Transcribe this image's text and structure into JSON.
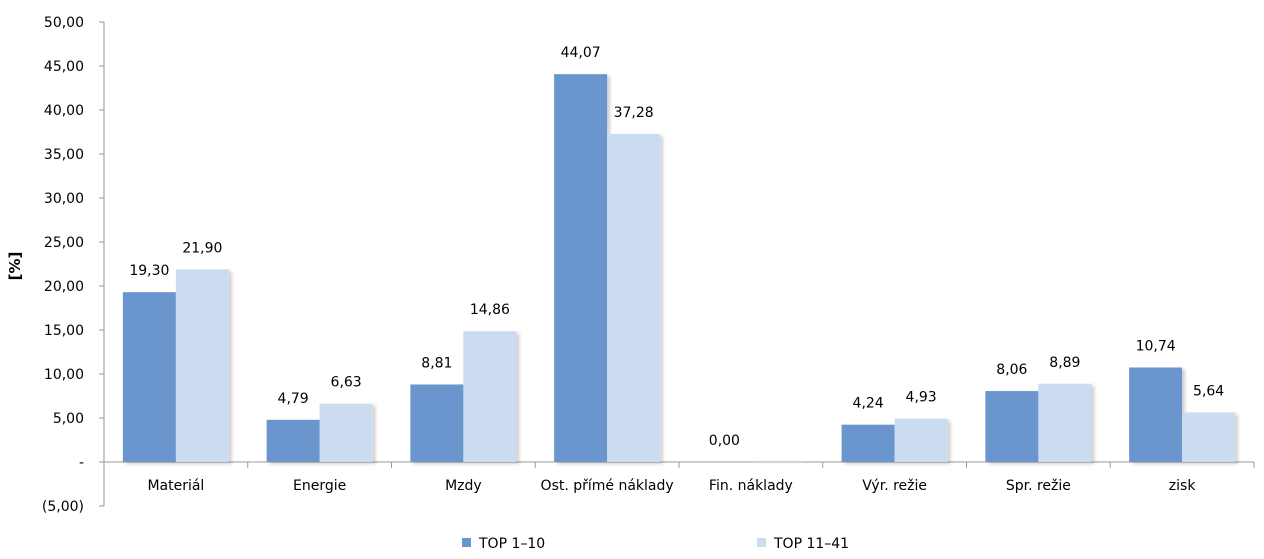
{
  "chart_data": {
    "type": "bar",
    "title": "",
    "xlabel": "",
    "ylabel": "[%]",
    "ylim": [
      -5,
      50
    ],
    "yticks": [
      -5,
      0,
      5,
      10,
      15,
      20,
      25,
      30,
      35,
      40,
      45,
      50
    ],
    "ytick_labels": [
      "(5,00)",
      "-",
      "5,00",
      "10,00",
      "15,00",
      "20,00",
      "25,00",
      "30,00",
      "35,00",
      "40,00",
      "45,00",
      "50,00"
    ],
    "categories": [
      "Materiál",
      "Energie",
      "Mzdy",
      "Ost. přímé náklady",
      "Fin. náklady",
      "Výr. režie",
      "Spr. režie",
      "zisk"
    ],
    "series": [
      {
        "name": "TOP 1–10",
        "color": "#6a95cd",
        "values": [
          19.3,
          4.79,
          8.81,
          44.07,
          0.0,
          4.24,
          8.06,
          10.74
        ],
        "labels": [
          "19,30",
          "4,79",
          "8,81",
          "44,07",
          "0,00",
          "4,24",
          "8,06",
          "10,74"
        ]
      },
      {
        "name": "TOP 11–41",
        "color": "#cbdcf1",
        "values": [
          21.9,
          6.63,
          14.86,
          37.28,
          -0.05,
          4.93,
          8.89,
          5.64
        ],
        "labels": [
          "21,90",
          "6,63",
          "14,86",
          "37,28",
          "",
          "4,93",
          "8,89",
          "5,64"
        ]
      }
    ],
    "grid": false,
    "legend_position": "bottom"
  }
}
